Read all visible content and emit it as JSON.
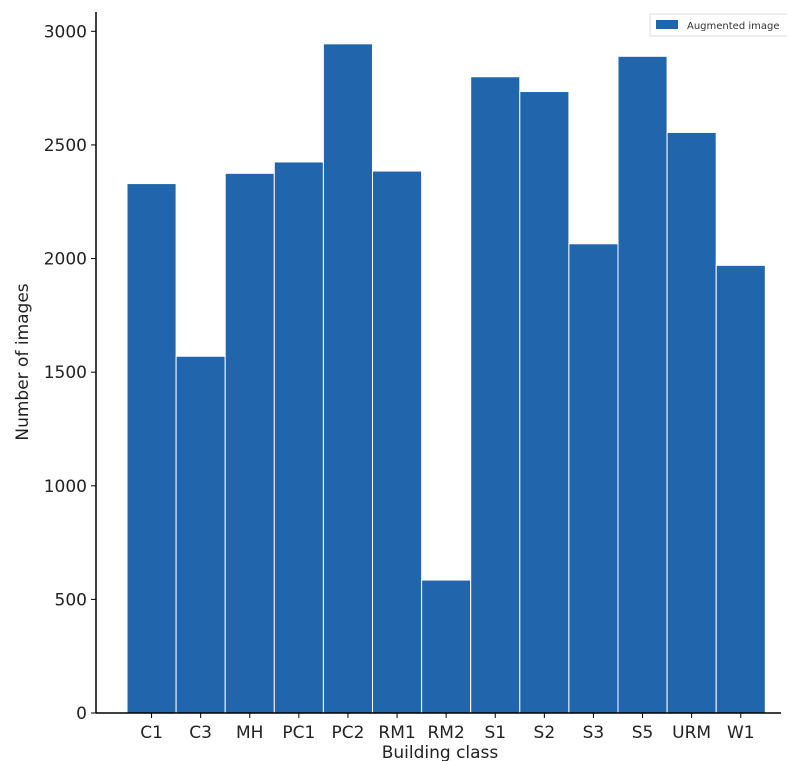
{
  "chart_data": {
    "type": "bar",
    "categories": [
      "C1",
      "C3",
      "MH",
      "PC1",
      "PC2",
      "RM1",
      "RM2",
      "S1",
      "S2",
      "S3",
      "S5",
      "URM",
      "W1"
    ],
    "series": [
      {
        "name": "Augmented image",
        "values": [
          2330,
          1570,
          2375,
          2425,
          2945,
          2385,
          585,
          2800,
          2735,
          2065,
          2890,
          2555,
          1970
        ]
      }
    ],
    "xlabel": "Building class",
    "ylabel": "Number of images",
    "ylim": [
      0,
      3085
    ],
    "yticks": [
      0,
      500,
      1000,
      1500,
      2000,
      2500,
      3000
    ],
    "grid": false,
    "legend": "top-right",
    "bar_color": "#2166ac",
    "bar_edge_color": "#ffffff"
  }
}
